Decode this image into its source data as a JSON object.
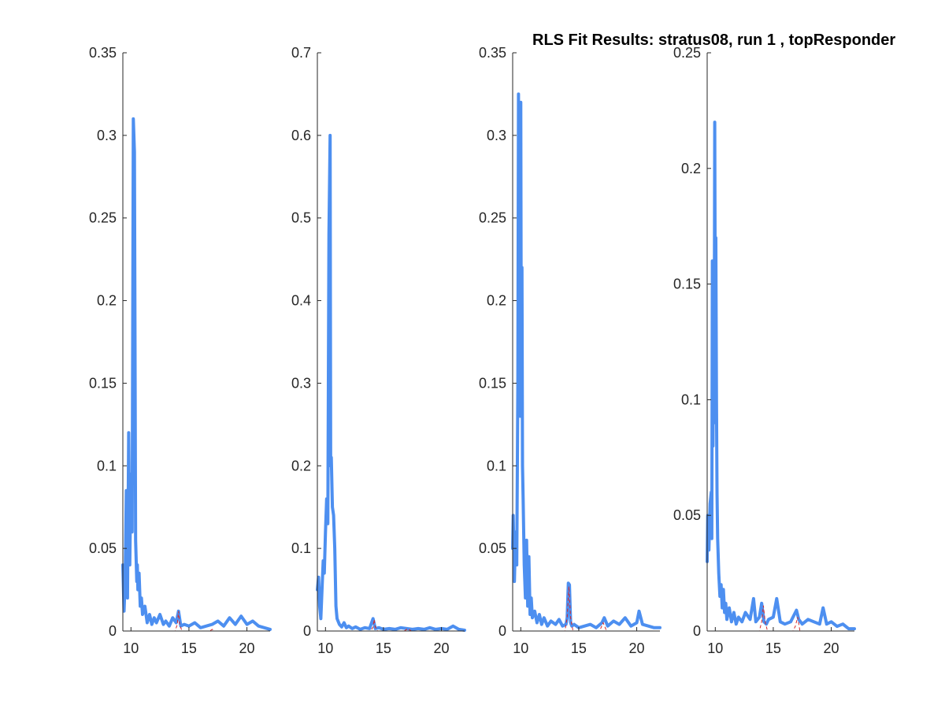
{
  "figure": {
    "title": "RLS Fit Results: stratus08, run 1 , topResponder"
  },
  "colors": {
    "data": "#4d8ff0",
    "fit": "#d62728",
    "axis": "#262626"
  },
  "chart_data": [
    {
      "type": "line",
      "title": "",
      "xlabel": "",
      "ylabel": "",
      "xlim": [
        9.3,
        22
      ],
      "ylim": [
        0,
        0.35
      ],
      "xticks": [
        10,
        15,
        20
      ],
      "yticks": [
        0,
        0.05,
        0.1,
        0.15,
        0.2,
        0.25,
        0.3,
        0.35
      ],
      "ytick_labels": [
        "0",
        "0.05",
        "0.1",
        "0.15",
        "0.2",
        "0.25",
        "0.3",
        "0.35"
      ],
      "series": [
        {
          "role": "data",
          "x": [
            9.3,
            9.4,
            9.5,
            9.6,
            9.7,
            9.8,
            9.9,
            10.0,
            10.1,
            10.2,
            10.3,
            10.4,
            10.5,
            10.55,
            10.6,
            10.7,
            10.8,
            10.9,
            11.0,
            11.2,
            11.4,
            11.6,
            11.8,
            12.0,
            12.2,
            12.5,
            12.8,
            13.0,
            13.3,
            13.6,
            13.9,
            14.1,
            14.3,
            14.6,
            15.0,
            15.5,
            16.0,
            16.5,
            17.0,
            17.5,
            18.0,
            18.5,
            19.0,
            19.5,
            20.0,
            20.5,
            21.0,
            21.5,
            22.0
          ],
          "y": [
            0.04,
            0.012,
            0.03,
            0.085,
            0.02,
            0.12,
            0.04,
            0.095,
            0.06,
            0.31,
            0.29,
            0.055,
            0.03,
            0.04,
            0.025,
            0.035,
            0.015,
            0.02,
            0.01,
            0.015,
            0.005,
            0.01,
            0.004,
            0.008,
            0.005,
            0.01,
            0.004,
            0.006,
            0.003,
            0.008,
            0.005,
            0.012,
            0.003,
            0.004,
            0.003,
            0.005,
            0.002,
            0.003,
            0.004,
            0.006,
            0.003,
            0.008,
            0.004,
            0.009,
            0.004,
            0.006,
            0.003,
            0.002,
            0.001
          ]
        },
        {
          "role": "fit",
          "x": [
            9.3,
            13.8,
            14.0,
            14.1,
            14.2,
            14.4,
            16.8,
            17.0,
            17.2,
            22.0
          ],
          "y": [
            0,
            0,
            0.004,
            0.012,
            0.004,
            0,
            0,
            0.001,
            0,
            0
          ]
        }
      ]
    },
    {
      "type": "line",
      "title": "",
      "xlabel": "",
      "ylabel": "",
      "xlim": [
        9.3,
        22
      ],
      "ylim": [
        0,
        0.7
      ],
      "xticks": [
        10,
        15,
        20
      ],
      "yticks": [
        0,
        0.1,
        0.2,
        0.3,
        0.4,
        0.5,
        0.6,
        0.7
      ],
      "ytick_labels": [
        "0",
        "0.1",
        "0.2",
        "0.3",
        "0.4",
        "0.5",
        "0.6",
        "0.7"
      ],
      "series": [
        {
          "role": "data",
          "x": [
            9.3,
            9.4,
            9.5,
            9.6,
            9.7,
            9.8,
            9.9,
            10.0,
            10.1,
            10.2,
            10.3,
            10.4,
            10.45,
            10.5,
            10.6,
            10.7,
            10.8,
            10.9,
            11.0,
            11.2,
            11.4,
            11.6,
            11.8,
            12.0,
            12.3,
            12.6,
            13.0,
            13.4,
            13.8,
            14.1,
            14.3,
            14.6,
            15.0,
            15.5,
            16.0,
            16.5,
            17.0,
            17.5,
            18.0,
            18.5,
            19.0,
            19.5,
            20.0,
            20.5,
            21.0,
            21.5,
            22.0
          ],
          "y": [
            0.05,
            0.065,
            0.03,
            0.015,
            0.05,
            0.085,
            0.07,
            0.12,
            0.16,
            0.13,
            0.48,
            0.6,
            0.2,
            0.21,
            0.15,
            0.14,
            0.1,
            0.03,
            0.015,
            0.008,
            0.005,
            0.01,
            0.004,
            0.006,
            0.003,
            0.005,
            0.002,
            0.004,
            0.003,
            0.015,
            0.003,
            0.004,
            0.002,
            0.003,
            0.002,
            0.004,
            0.003,
            0.002,
            0.003,
            0.002,
            0.004,
            0.002,
            0.003,
            0.002,
            0.006,
            0.002,
            0.001
          ]
        },
        {
          "role": "fit",
          "x": [
            9.3,
            13.9,
            14.1,
            14.2,
            14.3,
            14.5,
            16.8,
            17.1,
            17.4,
            22.0
          ],
          "y": [
            0,
            0,
            0.005,
            0.014,
            0.005,
            0,
            0,
            0.003,
            0,
            0
          ]
        }
      ]
    },
    {
      "type": "line",
      "title": "",
      "xlabel": "",
      "ylabel": "",
      "xlim": [
        9.3,
        22
      ],
      "ylim": [
        0,
        0.35
      ],
      "xticks": [
        10,
        15,
        20
      ],
      "yticks": [
        0,
        0.05,
        0.1,
        0.15,
        0.2,
        0.25,
        0.3,
        0.35
      ],
      "ytick_labels": [
        "0",
        "0.05",
        "0.1",
        "0.15",
        "0.2",
        "0.25",
        "0.3",
        "0.35"
      ],
      "series": [
        {
          "role": "data",
          "x": [
            9.3,
            9.35,
            9.45,
            9.55,
            9.65,
            9.75,
            9.8,
            9.85,
            9.9,
            9.95,
            10.0,
            10.05,
            10.1,
            10.15,
            10.2,
            10.3,
            10.4,
            10.5,
            10.6,
            10.7,
            10.8,
            10.9,
            11.0,
            11.2,
            11.4,
            11.6,
            11.8,
            12.0,
            12.3,
            12.6,
            13.0,
            13.3,
            13.6,
            13.9,
            14.0,
            14.1,
            14.2,
            14.3,
            14.4,
            14.6,
            15.0,
            15.5,
            16.0,
            16.5,
            17.0,
            17.2,
            17.5,
            18.0,
            18.5,
            19.0,
            19.5,
            20.0,
            20.2,
            20.5,
            21.0,
            21.5,
            22.0
          ],
          "y": [
            0.05,
            0.07,
            0.03,
            0.06,
            0.04,
            0.15,
            0.325,
            0.15,
            0.26,
            0.13,
            0.32,
            0.14,
            0.22,
            0.1,
            0.08,
            0.04,
            0.02,
            0.055,
            0.015,
            0.045,
            0.01,
            0.02,
            0.008,
            0.012,
            0.005,
            0.01,
            0.004,
            0.008,
            0.003,
            0.006,
            0.004,
            0.007,
            0.003,
            0.004,
            0.008,
            0.029,
            0.028,
            0.005,
            0.003,
            0.004,
            0.002,
            0.003,
            0.004,
            0.002,
            0.005,
            0.008,
            0.003,
            0.006,
            0.004,
            0.008,
            0.003,
            0.005,
            0.012,
            0.004,
            0.003,
            0.002,
            0.002
          ]
        },
        {
          "role": "fit",
          "x": [
            9.3,
            13.8,
            14.0,
            14.15,
            14.3,
            14.5,
            16.8,
            17.1,
            17.4,
            22.0
          ],
          "y": [
            0,
            0,
            0.008,
            0.027,
            0.008,
            0,
            0,
            0.005,
            0,
            0
          ]
        }
      ]
    },
    {
      "type": "line",
      "title": "",
      "xlabel": "",
      "ylabel": "",
      "xlim": [
        9.3,
        22
      ],
      "ylim": [
        0,
        0.25
      ],
      "xticks": [
        10,
        15,
        20
      ],
      "yticks": [
        0,
        0.05,
        0.1,
        0.15,
        0.2,
        0.25
      ],
      "ytick_labels": [
        "0",
        "0.05",
        "0.1",
        "0.15",
        "0.2",
        "0.25"
      ],
      "series": [
        {
          "role": "data",
          "x": [
            9.3,
            9.35,
            9.45,
            9.55,
            9.65,
            9.7,
            9.75,
            9.8,
            9.85,
            9.9,
            9.95,
            10.0,
            10.05,
            10.1,
            10.15,
            10.2,
            10.3,
            10.4,
            10.5,
            10.6,
            10.7,
            10.8,
            10.9,
            11.0,
            11.2,
            11.4,
            11.6,
            11.8,
            12.0,
            12.3,
            12.6,
            13.0,
            13.3,
            13.5,
            13.8,
            14.0,
            14.2,
            14.4,
            14.6,
            15.0,
            15.3,
            15.6,
            16.0,
            16.5,
            17.0,
            17.2,
            17.5,
            18.0,
            18.5,
            19.0,
            19.3,
            19.6,
            20.0,
            20.5,
            21.0,
            21.5,
            22.0
          ],
          "y": [
            0.03,
            0.05,
            0.035,
            0.055,
            0.06,
            0.04,
            0.16,
            0.08,
            0.15,
            0.09,
            0.22,
            0.13,
            0.17,
            0.1,
            0.06,
            0.04,
            0.025,
            0.015,
            0.02,
            0.01,
            0.018,
            0.008,
            0.012,
            0.005,
            0.01,
            0.004,
            0.008,
            0.003,
            0.006,
            0.004,
            0.008,
            0.005,
            0.014,
            0.004,
            0.006,
            0.012,
            0.004,
            0.003,
            0.005,
            0.006,
            0.014,
            0.004,
            0.003,
            0.004,
            0.009,
            0.005,
            0.003,
            0.005,
            0.004,
            0.003,
            0.01,
            0.003,
            0.004,
            0.002,
            0.003,
            0.001,
            0.001
          ]
        },
        {
          "role": "fit",
          "x": [
            9.3,
            13.8,
            14.0,
            14.15,
            14.3,
            14.5,
            16.7,
            16.9,
            17.1,
            17.3,
            22.0
          ],
          "y": [
            0,
            0,
            0.004,
            0.011,
            0.004,
            0,
            0,
            0.002,
            0.006,
            0,
            0
          ]
        }
      ]
    }
  ]
}
